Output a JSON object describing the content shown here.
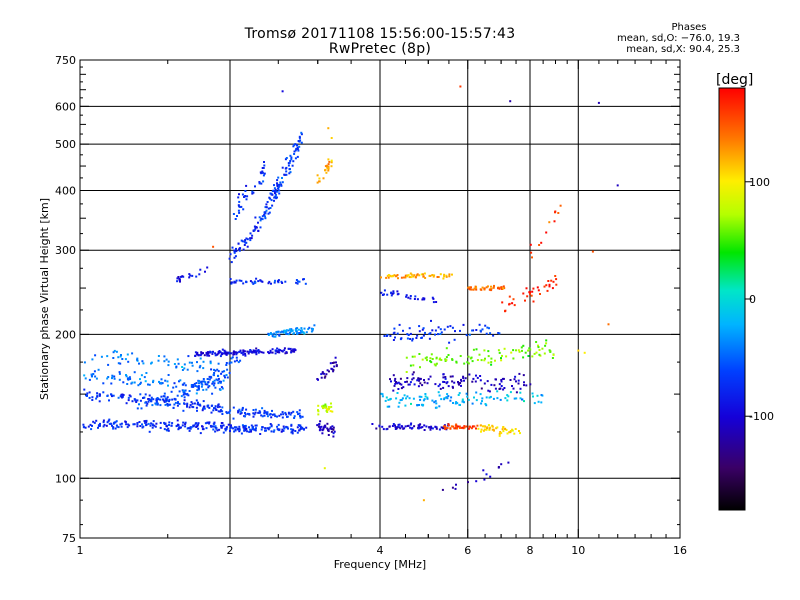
{
  "chart_data": {
    "type": "scatter",
    "title": "Tromsø 20171108 15:56:00-15:57:43",
    "subtitle": "RwPretec (8p)",
    "xlabel": "Frequency [MHz]",
    "ylabel": "Stationary phase Virtual Height [km]",
    "x_scale": "log",
    "y_scale": "log",
    "xlim": [
      1,
      16
    ],
    "ylim": [
      75,
      750
    ],
    "x_ticks": [
      {
        "value": 1,
        "label": "1"
      },
      {
        "value": 2,
        "label": "2"
      },
      {
        "value": 4,
        "label": "4"
      },
      {
        "value": 6,
        "label": "6"
      },
      {
        "value": 8,
        "label": "8"
      },
      {
        "value": 10,
        "label": "10"
      },
      {
        "value": 16,
        "label": "16"
      }
    ],
    "x_grid": [
      2,
      4,
      6,
      8,
      10
    ],
    "y_ticks": [
      {
        "value": 75,
        "label": "75"
      },
      {
        "value": 100,
        "label": "100"
      },
      {
        "value": 200,
        "label": "200"
      },
      {
        "value": 300,
        "label": "300"
      },
      {
        "value": 400,
        "label": "400"
      },
      {
        "value": 500,
        "label": "500"
      },
      {
        "value": 600,
        "label": "600"
      },
      {
        "value": 750,
        "label": "750"
      }
    ],
    "y_grid": [
      100,
      200,
      300,
      400,
      500,
      600
    ],
    "grid": true,
    "colorbar": {
      "label": "[deg]",
      "range": [
        -180,
        180
      ],
      "ticks": [
        {
          "value": 100,
          "label": "100"
        },
        {
          "value": 0,
          "label": "0"
        },
        {
          "value": -100,
          "label": "-100"
        }
      ],
      "colormap": "rainbow: black-purple-blue-cyan-green-yellow-red"
    },
    "traces": [
      {
        "x": [
          1.02,
          1.95
        ],
        "y": [
          130,
          128
        ],
        "phase": -75,
        "count": 160,
        "spread": 0.035
      },
      {
        "x": [
          1.02,
          1.95
        ],
        "y": [
          150,
          140
        ],
        "phase": -72,
        "count": 150,
        "spread": 0.04
      },
      {
        "x": [
          1.02,
          1.95
        ],
        "y": [
          165,
          155
        ],
        "phase": -45,
        "count": 90,
        "spread": 0.05
      },
      {
        "x": [
          1.02,
          1.9
        ],
        "y": [
          180,
          172
        ],
        "phase": -40,
        "count": 60,
        "spread": 0.05
      },
      {
        "x": [
          1.3,
          2.0
        ],
        "y": [
          140,
          165
        ],
        "phase": -60,
        "count": 60,
        "spread": 0.04
      },
      {
        "x": [
          1.6,
          2.1
        ],
        "y": [
          150,
          180
        ],
        "phase": -55,
        "count": 50,
        "spread": 0.04
      },
      {
        "x": [
          1.95,
          2.85
        ],
        "y": [
          127,
          127
        ],
        "phase": -70,
        "count": 120,
        "spread": 0.03
      },
      {
        "x": [
          1.95,
          2.85
        ],
        "y": [
          138,
          135
        ],
        "phase": -68,
        "count": 80,
        "spread": 0.035
      },
      {
        "x": [
          1.7,
          2.7
        ],
        "y": [
          182,
          185
        ],
        "phase": -95,
        "count": 140,
        "spread": 0.02
      },
      {
        "x": [
          2.4,
          2.95
        ],
        "y": [
          200,
          205
        ],
        "phase": -35,
        "count": 70,
        "spread": 0.025
      },
      {
        "x": [
          1.55,
          1.8
        ],
        "y": [
          260,
          272
        ],
        "phase": -90,
        "count": 20,
        "spread": 0.03
      },
      {
        "x": [
          2.0,
          2.85
        ],
        "y": [
          258,
          258
        ],
        "phase": -75,
        "count": 45,
        "spread": 0.02
      },
      {
        "x": [
          2.0,
          2.3
        ],
        "y": [
          290,
          340
        ],
        "phase": -80,
        "count": 45,
        "spread": 0.06
      },
      {
        "x": [
          2.3,
          2.8
        ],
        "y": [
          340,
          520
        ],
        "phase": -65,
        "count": 110,
        "spread": 0.08
      },
      {
        "x": [
          2.05,
          2.35
        ],
        "y": [
          360,
          440
        ],
        "phase": -70,
        "count": 40,
        "spread": 0.07
      },
      {
        "x": [
          3.0,
          3.25
        ],
        "y": [
          128,
          125
        ],
        "phase": -110,
        "count": 35,
        "spread": 0.04
      },
      {
        "x": [
          3.0,
          3.2
        ],
        "y": [
          140,
          140
        ],
        "phase": 80,
        "count": 25,
        "spread": 0.03
      },
      {
        "x": [
          3.0,
          3.3
        ],
        "y": [
          160,
          175
        ],
        "phase": -115,
        "count": 25,
        "spread": 0.05
      },
      {
        "x": [
          3.0,
          3.2
        ],
        "y": [
          420,
          460
        ],
        "phase": 120,
        "count": 22,
        "spread": 0.04
      },
      {
        "x": [
          3.8,
          5.5
        ],
        "y": [
          128,
          128
        ],
        "phase": -100,
        "count": 70,
        "spread": 0.02
      },
      {
        "x": [
          5.3,
          6.3
        ],
        "y": [
          128,
          128
        ],
        "phase": 160,
        "count": 40,
        "spread": 0.02
      },
      {
        "x": [
          6.3,
          7.6
        ],
        "y": [
          128,
          125
        ],
        "phase": 110,
        "count": 45,
        "spread": 0.035
      },
      {
        "x": [
          4.0,
          8.5
        ],
        "y": [
          145,
          148
        ],
        "phase": -20,
        "count": 110,
        "spread": 0.06
      },
      {
        "x": [
          4.2,
          8.2
        ],
        "y": [
          160,
          158
        ],
        "phase": -110,
        "count": 120,
        "spread": 0.06
      },
      {
        "x": [
          4.5,
          9.0
        ],
        "y": [
          175,
          185
        ],
        "phase": 60,
        "count": 100,
        "spread": 0.07
      },
      {
        "x": [
          4.0,
          7.0
        ],
        "y": [
          200,
          205
        ],
        "phase": -70,
        "count": 70,
        "spread": 0.06
      },
      {
        "x": [
          4.0,
          5.6
        ],
        "y": [
          265,
          265
        ],
        "phase": 120,
        "count": 55,
        "spread": 0.015
      },
      {
        "x": [
          6.0,
          7.2
        ],
        "y": [
          250,
          250
        ],
        "phase": 140,
        "count": 40,
        "spread": 0.015
      },
      {
        "x": [
          4.0,
          5.2
        ],
        "y": [
          245,
          235
        ],
        "phase": -85,
        "count": 30,
        "spread": 0.03
      },
      {
        "x": [
          7.0,
          9.3
        ],
        "y": [
          230,
          260
        ],
        "phase": 170,
        "count": 35,
        "spread": 0.06
      },
      {
        "x": [
          8.0,
          9.5
        ],
        "y": [
          300,
          380
        ],
        "phase": 160,
        "count": 12,
        "spread": 0.06
      },
      {
        "x": [
          5.3,
          7.8
        ],
        "y": [
          92,
          110
        ],
        "phase": -110,
        "count": 14,
        "spread": 0.05
      }
    ],
    "points": [
      {
        "x": 2.55,
        "y": 645,
        "phase": -95
      },
      {
        "x": 5.8,
        "y": 660,
        "phase": 160
      },
      {
        "x": 7.3,
        "y": 615,
        "phase": -120
      },
      {
        "x": 11.0,
        "y": 610,
        "phase": -115
      },
      {
        "x": 12.0,
        "y": 410,
        "phase": -110
      },
      {
        "x": 10.7,
        "y": 298,
        "phase": 150
      },
      {
        "x": 11.5,
        "y": 210,
        "phase": 140
      },
      {
        "x": 3.1,
        "y": 105,
        "phase": 90
      },
      {
        "x": 3.15,
        "y": 540,
        "phase": 120
      },
      {
        "x": 3.2,
        "y": 515,
        "phase": 110
      },
      {
        "x": 4.9,
        "y": 90,
        "phase": 120
      },
      {
        "x": 10.0,
        "y": 185,
        "phase": 110
      },
      {
        "x": 10.3,
        "y": 183,
        "phase": 100
      },
      {
        "x": 1.85,
        "y": 305,
        "phase": 150
      }
    ]
  },
  "phases_box": {
    "title": "Phases",
    "line_o": "mean, sd,O: −76.0, 19.3",
    "line_x": "mean, sd,X:  90.4, 25.3"
  },
  "colors": {
    "grid": "#000000",
    "background": "#ffffff"
  }
}
